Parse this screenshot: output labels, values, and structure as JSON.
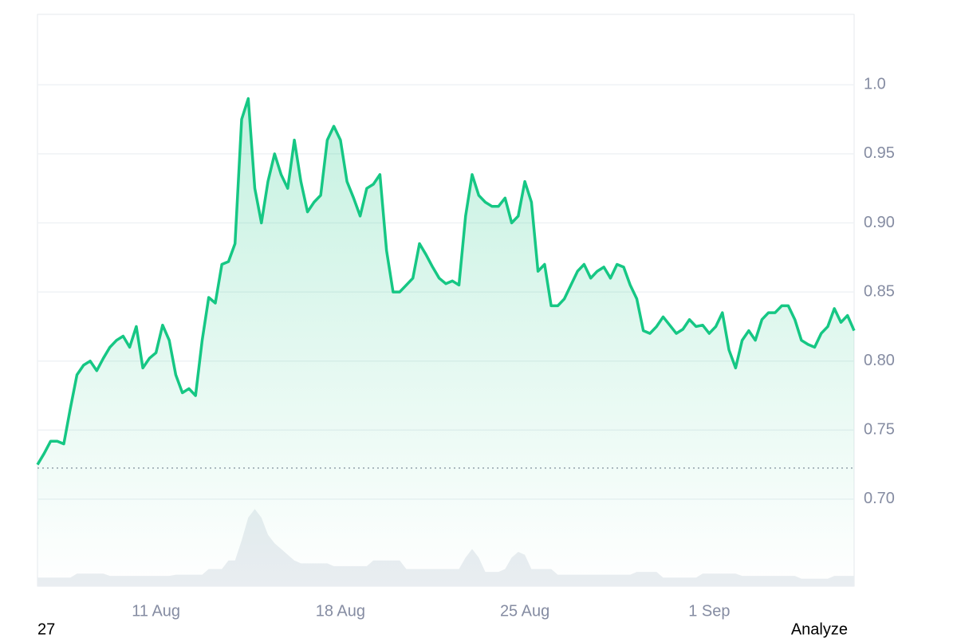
{
  "chart_data": {
    "type": "line",
    "color": "#16c784",
    "values": [
      0.725,
      0.733,
      0.742,
      0.742,
      0.74,
      0.766,
      0.79,
      0.797,
      0.8,
      0.793,
      0.802,
      0.81,
      0.815,
      0.818,
      0.81,
      0.825,
      0.795,
      0.802,
      0.806,
      0.826,
      0.815,
      0.79,
      0.777,
      0.78,
      0.775,
      0.815,
      0.846,
      0.842,
      0.87,
      0.872,
      0.885,
      0.975,
      0.99,
      0.925,
      0.9,
      0.93,
      0.95,
      0.935,
      0.925,
      0.96,
      0.93,
      0.908,
      0.915,
      0.92,
      0.96,
      0.97,
      0.96,
      0.93,
      0.918,
      0.905,
      0.925,
      0.928,
      0.935,
      0.88,
      0.85,
      0.85,
      0.855,
      0.86,
      0.885,
      0.877,
      0.868,
      0.86,
      0.856,
      0.858,
      0.855,
      0.905,
      0.935,
      0.92,
      0.915,
      0.912,
      0.912,
      0.918,
      0.9,
      0.905,
      0.93,
      0.915,
      0.865,
      0.87,
      0.84,
      0.84,
      0.845,
      0.855,
      0.865,
      0.87,
      0.86,
      0.865,
      0.868,
      0.86,
      0.87,
      0.868,
      0.855,
      0.845,
      0.822,
      0.82,
      0.825,
      0.832,
      0.826,
      0.82,
      0.823,
      0.83,
      0.825,
      0.826,
      0.82,
      0.825,
      0.835,
      0.808,
      0.795,
      0.815,
      0.822,
      0.815,
      0.83,
      0.835,
      0.835,
      0.84,
      0.84,
      0.83,
      0.815,
      0.812,
      0.81,
      0.82,
      0.825,
      0.838,
      0.828,
      0.833,
      0.822
    ],
    "categories": [
      null,
      null,
      null,
      null,
      null,
      null,
      null,
      null,
      null,
      null,
      null,
      null,
      null,
      null,
      null,
      null,
      null,
      null,
      "11 Aug",
      null,
      null,
      null,
      null,
      null,
      null,
      null,
      null,
      null,
      null,
      null,
      null,
      null,
      null,
      null,
      null,
      null,
      null,
      null,
      null,
      null,
      null,
      null,
      null,
      null,
      null,
      null,
      "18 Aug",
      null,
      null,
      null,
      null,
      null,
      null,
      null,
      null,
      null,
      null,
      null,
      null,
      null,
      null,
      null,
      null,
      null,
      null,
      null,
      null,
      null,
      null,
      null,
      null,
      null,
      null,
      null,
      "25 Aug",
      null,
      null,
      null,
      null,
      null,
      null,
      null,
      null,
      null,
      null,
      null,
      null,
      null,
      null,
      null,
      null,
      null,
      null,
      null,
      null,
      null,
      null,
      null,
      null,
      null,
      null,
      null,
      "1 Sep",
      null,
      null,
      null,
      null,
      null,
      null,
      null,
      null,
      null,
      null,
      null,
      null,
      null,
      null,
      null,
      null,
      null,
      null,
      null,
      null,
      null,
      null
    ],
    "volume": {
      "axis": "y2",
      "color": "#e9edf1",
      "values": [
        1.5,
        1.5,
        1.5,
        1.5,
        1.5,
        1.5,
        2.2,
        2.2,
        2.2,
        2.2,
        2.2,
        1.8,
        1.8,
        1.8,
        1.8,
        1.8,
        1.8,
        1.8,
        1.8,
        1.8,
        1.8,
        2,
        2,
        2,
        2,
        2,
        3,
        3,
        3,
        4.5,
        4.5,
        8,
        12,
        13.5,
        12,
        9,
        7.5,
        6.5,
        5.5,
        4.5,
        4,
        4,
        4,
        4,
        4,
        3.5,
        3.5,
        3.5,
        3.5,
        3.5,
        3.5,
        4.5,
        4.5,
        4.5,
        4.5,
        4.5,
        3,
        3,
        3,
        3,
        3,
        3,
        3,
        3,
        3,
        5,
        6.5,
        5,
        2.5,
        2.5,
        2.5,
        3,
        5,
        6,
        5.5,
        3,
        3,
        3,
        3,
        2,
        2,
        2,
        2,
        2,
        2,
        2,
        2,
        2,
        2,
        2,
        2,
        2.5,
        2.5,
        2.5,
        2.5,
        1.5,
        1.5,
        1.5,
        1.5,
        1.5,
        1.5,
        2.2,
        2.2,
        2.2,
        2.2,
        2.2,
        2.2,
        1.8,
        1.8,
        1.8,
        1.8,
        1.8,
        1.8,
        1.8,
        1.8,
        1.8,
        1.3,
        1.3,
        1.3,
        1.3,
        1.3,
        1.8,
        1.8,
        1.8,
        1.8
      ]
    },
    "reference_line": 0.7225,
    "ylim": [
      0.637,
      1.051
    ],
    "yticks": [
      {
        "value": 0.7,
        "label": "0.70"
      },
      0.75,
      {
        "value": 0.8,
        "label": "0.80"
      },
      0.85,
      {
        "value": 0.9,
        "label": "0.90"
      },
      0.95,
      {
        "value": 1,
        "label": "1.0"
      }
    ],
    "y2lim": [
      0,
      100
    ],
    "grid": true
  },
  "footer": {
    "left": "27",
    "right": "Analyze"
  }
}
